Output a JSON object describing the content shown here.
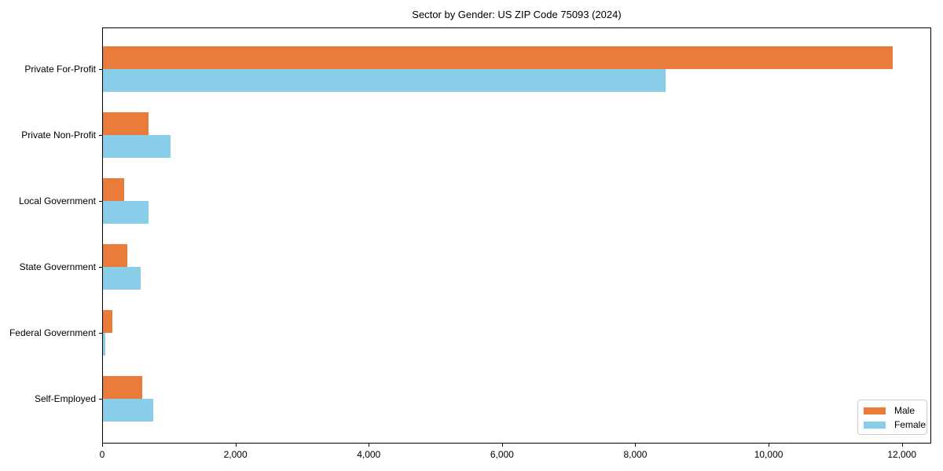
{
  "title": "Sector by Gender: US ZIP Code 75093 (2024)",
  "colors": {
    "male": "#e97c3b",
    "female": "#89cee8",
    "frame": "#000000",
    "text": "#000000",
    "legend_border": "#cccccc",
    "background": "#ffffff"
  },
  "legend": {
    "position": "lower right",
    "labels": [
      "Male",
      "Female"
    ]
  },
  "chart_data": {
    "type": "bar",
    "orientation": "horizontal",
    "title": "Sector by Gender: US ZIP Code 75093 (2024)",
    "xlabel": "",
    "ylabel": "",
    "categories": [
      "Private For-Profit",
      "Private Non-Profit",
      "Local Government",
      "State Government",
      "Federal Government",
      "Self-Employed"
    ],
    "series": [
      {
        "name": "Male",
        "color": "#e97c3b",
        "values": [
          11860,
          700,
          330,
          380,
          150,
          600
        ]
      },
      {
        "name": "Female",
        "color": "#89cee8",
        "values": [
          8460,
          1020,
          700,
          580,
          50,
          770
        ]
      }
    ],
    "xlim": [
      0,
      12440
    ],
    "xticks": [
      0,
      2000,
      4000,
      6000,
      8000,
      10000,
      12000
    ],
    "xtick_labels": [
      "0",
      "2,000",
      "4,000",
      "6,000",
      "8,000",
      "10,000",
      "12,000"
    ],
    "grid": false,
    "legend_position": "lower right"
  }
}
